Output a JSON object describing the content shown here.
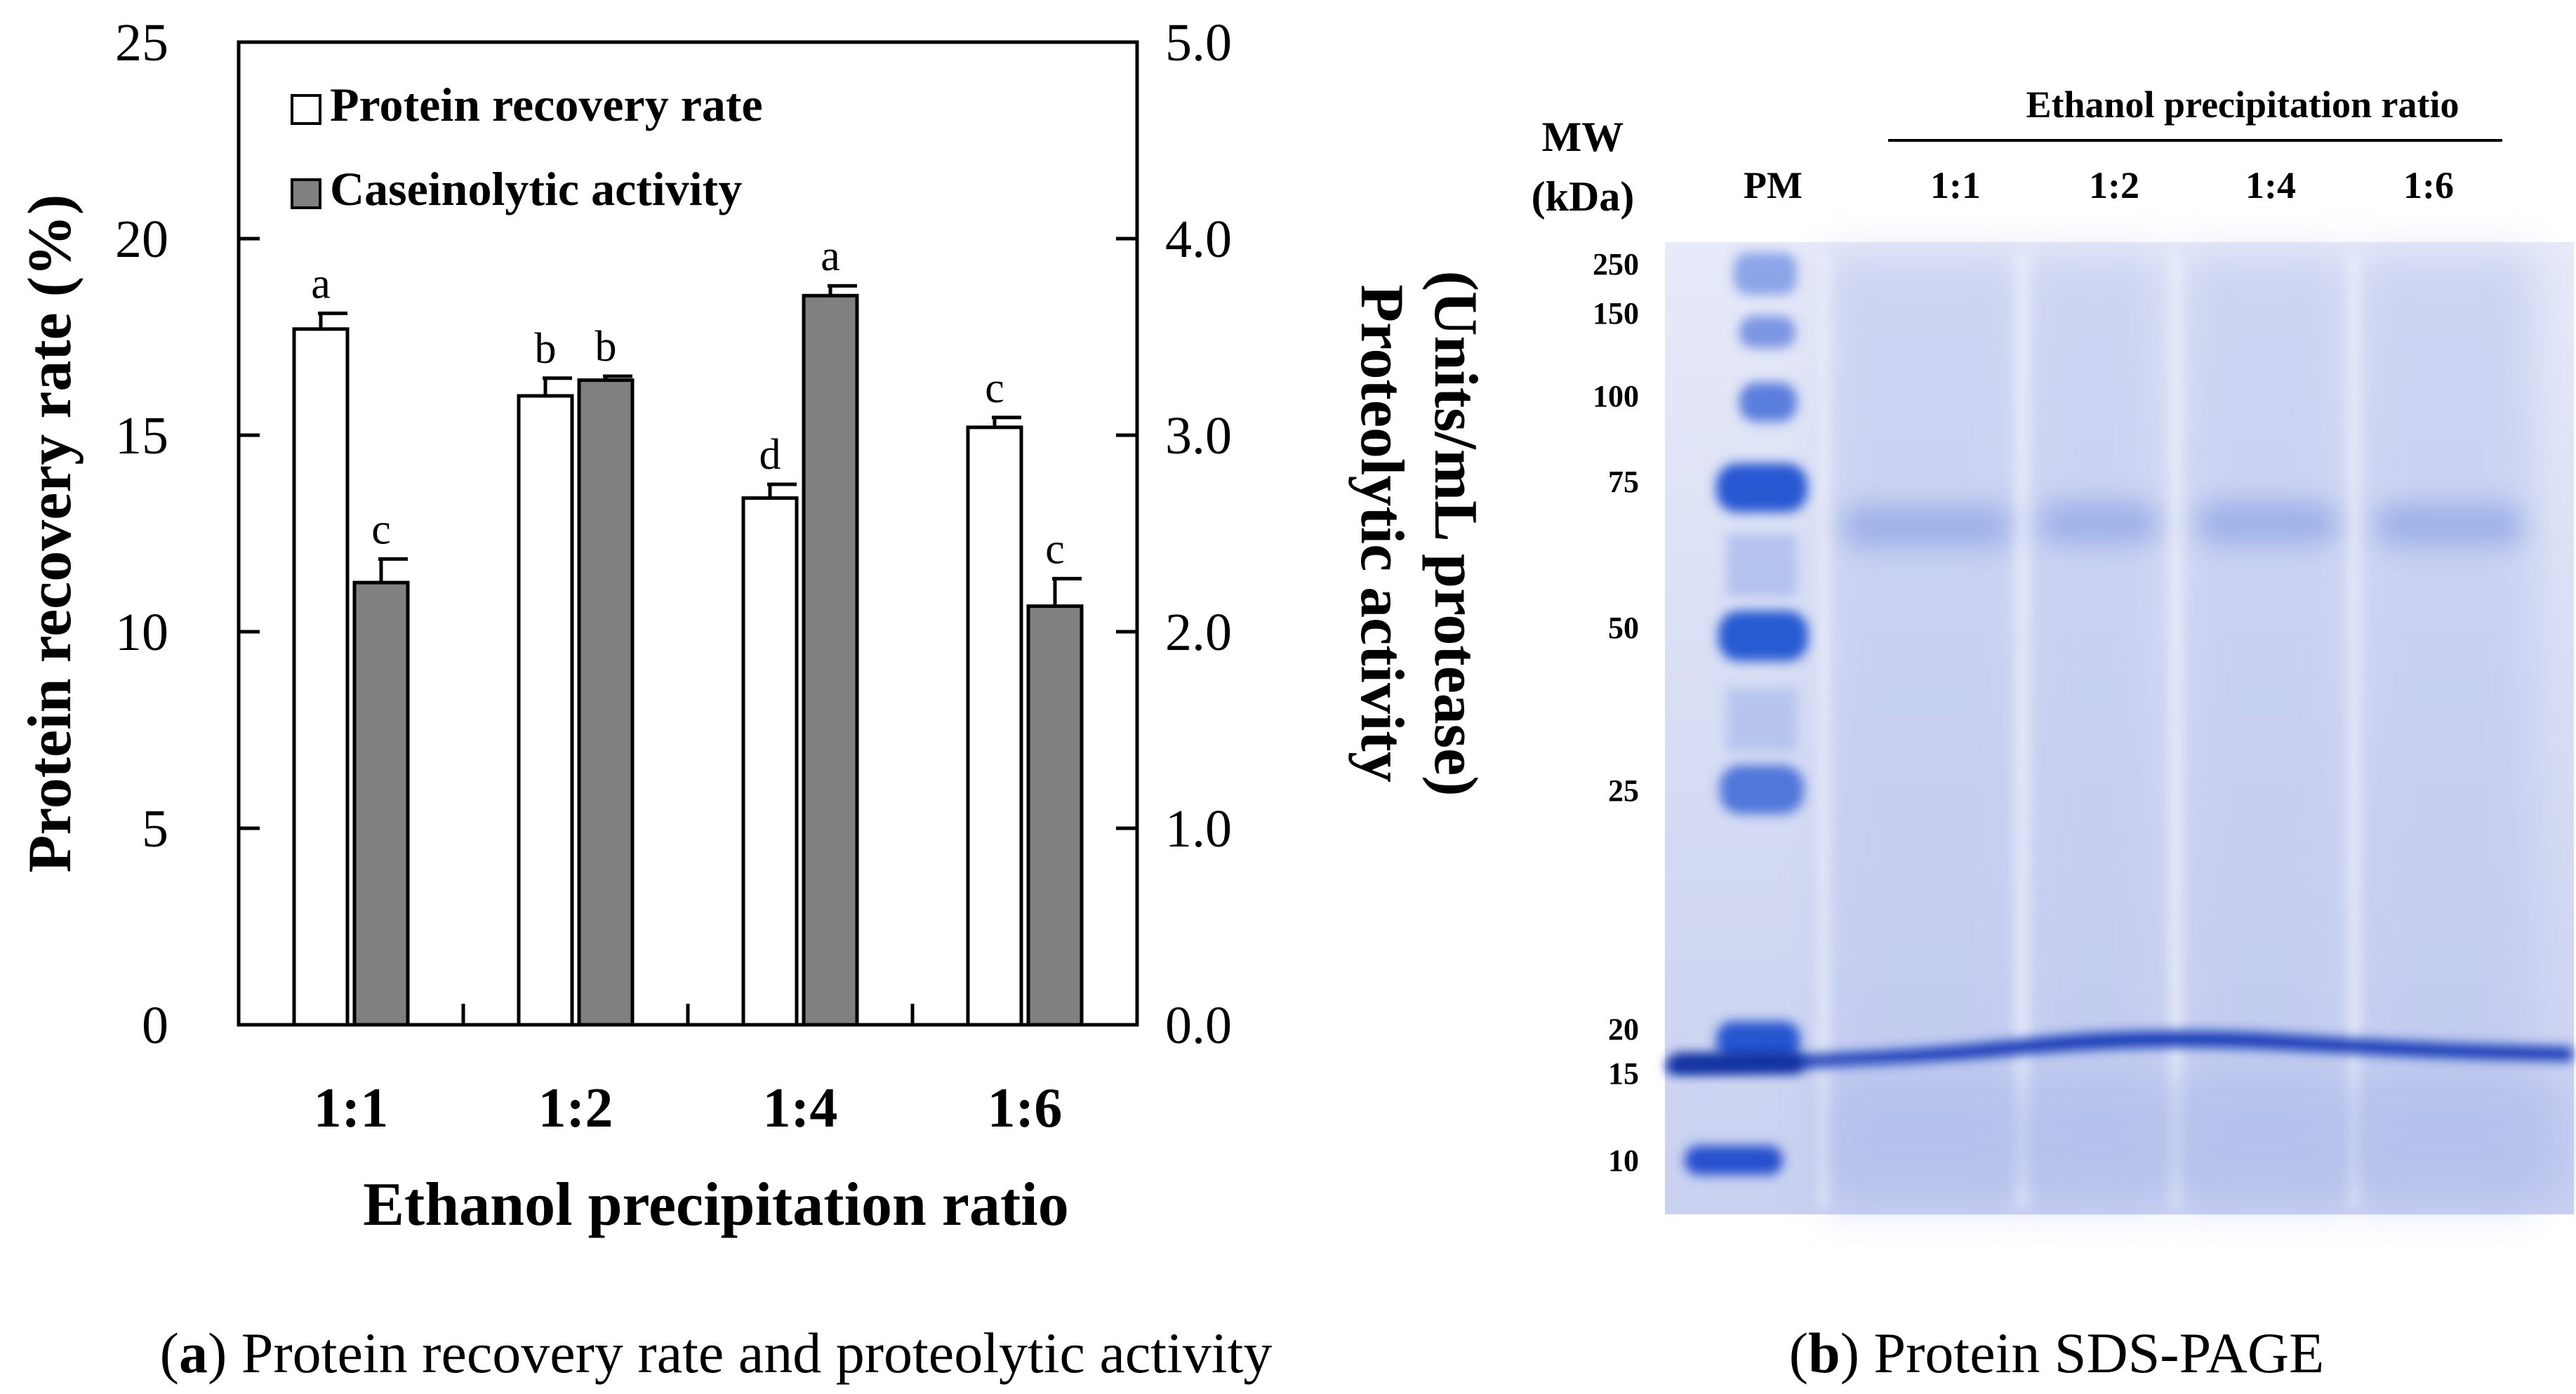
{
  "chart_data": [
    {
      "type": "bar",
      "panel": "a",
      "caption_letter": "a",
      "caption_text": " Protein recovery rate and proteolytic activity",
      "categories": [
        "1:1",
        "1:2",
        "1:4",
        "1:6"
      ],
      "xlabel": "Ethanol precipitation ratio",
      "ylabel": "Protein recovery rate (%)",
      "y2label_line1": "Proteolytic activity",
      "y2label_line2": "(Units/mL protease)",
      "ylim": [
        0,
        25
      ],
      "y2lim": [
        0,
        5
      ],
      "yticks": [
        "0",
        "5",
        "10",
        "15",
        "20",
        "25"
      ],
      "y2ticks": [
        "0.0",
        "1.0",
        "2.0",
        "3.0",
        "4.0",
        "5.0"
      ],
      "legend_position": "top-left",
      "series": [
        {
          "name": "Protein recovery rate",
          "axis": "left",
          "color": "#ffffff",
          "values": [
            17.7,
            16.0,
            13.4,
            15.2
          ],
          "errors": [
            0.4,
            0.45,
            0.35,
            0.25
          ],
          "letters": [
            "a",
            "b",
            "d",
            "c"
          ]
        },
        {
          "name": "Caseinolytic activity",
          "axis": "right",
          "color": "#808080",
          "values": [
            2.25,
            3.28,
            3.71,
            2.13
          ],
          "errors": [
            0.12,
            0.02,
            0.05,
            0.14
          ],
          "letters": [
            "c",
            "b",
            "a",
            "c"
          ]
        }
      ]
    }
  ],
  "gel": {
    "panel": "b",
    "caption_letter": "b",
    "caption_text": " Protein SDS-PAGE",
    "mw_label": "MW",
    "kda_label": "(kDa)",
    "header": "Ethanol precipitation ratio",
    "marker_lane": "PM",
    "sample_lanes": [
      "1:1",
      "1:2",
      "1:4",
      "1:6"
    ],
    "mw_markers": [
      "250",
      "150",
      "100",
      "75",
      "50",
      "25",
      "20",
      "15",
      "10"
    ],
    "colors": {
      "background": "#d9dff5",
      "stain": "#1848c8",
      "band": "#0b36b5"
    }
  }
}
